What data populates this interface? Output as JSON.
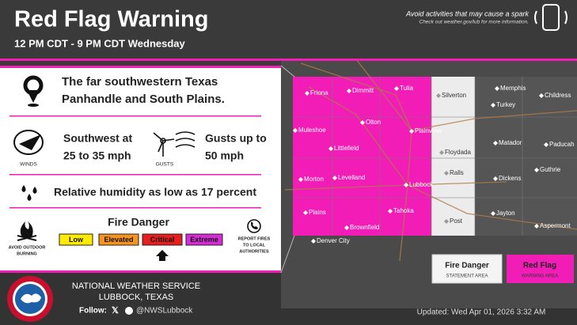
{
  "header": {
    "title": "Red Flag Warning",
    "subtitle": "12 PM CDT - 9 PM CDT Wednesday",
    "tip": "Avoid activities that may cause a spark",
    "tip_note": "Check out weather.gov/lub for more information."
  },
  "location": [
    "The far southwestern Texas",
    "Panhandle and South Plains."
  ],
  "wind": {
    "sustained": [
      "Southwest at",
      "25 to 35 mph"
    ],
    "winds_label": "WINDS",
    "gusts_label": "GUSTS",
    "gusts": [
      "Gusts up to",
      "50 mph"
    ]
  },
  "humidity": "Relative humidity as low as 17 percent",
  "fire_danger": {
    "title": "Fire Danger",
    "levels": [
      "Low",
      "Elevated",
      "Critical",
      "Extreme"
    ],
    "current_level": 2,
    "burn_note": [
      "AVOID OUTDOOR",
      "BURNING"
    ],
    "report_note": [
      "REPORT FIRES",
      "TO LOCAL",
      "AUTHORITIES"
    ]
  },
  "map": {
    "towns": [
      "Friona",
      "Dimmitt",
      "Tulia",
      "Silverton",
      "Memphis",
      "Childress",
      "Turkey",
      "Muleshoe",
      "Olton",
      "Plainview",
      "Floydada",
      "Littlefield",
      "Matador",
      "Paducah",
      "Morton",
      "Levelland",
      "Lubbock",
      "Ralls",
      "Dickens",
      "Guthrie",
      "Plains",
      "Tahoka",
      "Jayton",
      "Brownfield",
      "Post",
      "Aspermont",
      "Denver City"
    ],
    "legend": [
      {
        "title": "Fire Danger",
        "subtitle": "STATEMENT AREA"
      },
      {
        "title": "Red Flag",
        "subtitle": "WARNING AREA"
      }
    ]
  },
  "footer": {
    "office": "NATIONAL WEATHER SERVICE",
    "location": "LUBBOCK, TEXAS",
    "follow": "Follow:",
    "handle": "@NWSLubbock",
    "updated": "Updated: Wed Apr 01, 2026 3:32 AM"
  }
}
